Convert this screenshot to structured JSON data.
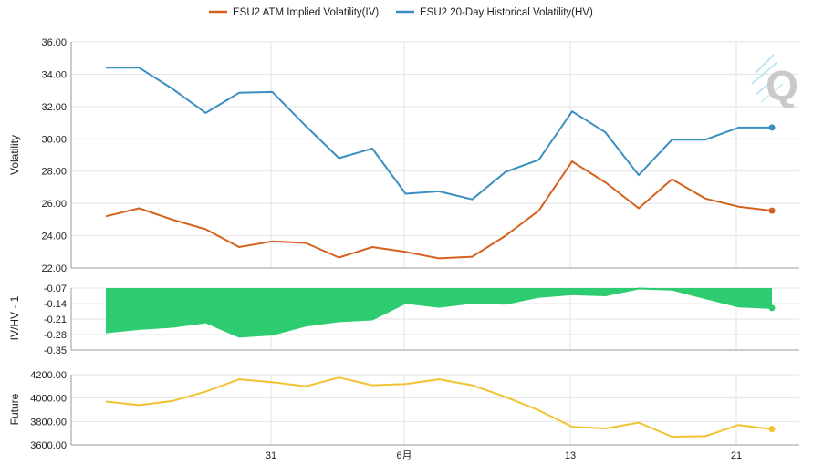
{
  "chart_data": {
    "type": "line",
    "legend": {
      "placement": "top-center",
      "items": [
        {
          "label": "ESU2 ATM Implied Volatility(IV)",
          "color": "#d4621f"
        },
        {
          "label": "ESU2 20-Day Historical Volatility(HV)",
          "color": "#3a8fc1"
        }
      ]
    },
    "x_ticks": [
      "31",
      "6月",
      "13",
      "21"
    ],
    "logo": "Q",
    "panels": [
      {
        "name": "volatility",
        "ylabel": "Volatility",
        "ylim": [
          22,
          36
        ],
        "yticks": [
          "22.00",
          "24.00",
          "26.00",
          "28.00",
          "30.00",
          "32.00",
          "34.00",
          "36.00"
        ],
        "series": [
          {
            "name": "ESU2 ATM Implied Volatility(IV)",
            "color": "#d4621f",
            "values": [
              25.2,
              25.7,
              25.0,
              24.4,
              23.3,
              23.65,
              23.55,
              22.65,
              23.3,
              23.0,
              22.6,
              22.7,
              24.0,
              25.55,
              28.6,
              27.3,
              25.7,
              27.5,
              26.3,
              25.8,
              25.55
            ]
          },
          {
            "name": "ESU2 20-Day Historical Volatility(HV)",
            "color": "#3a8fc1",
            "values": [
              34.4,
              34.4,
              33.1,
              31.6,
              32.85,
              32.9,
              30.8,
              28.8,
              29.4,
              26.6,
              26.75,
              26.25,
              27.95,
              28.7,
              31.7,
              30.4,
              27.75,
              29.95,
              29.95,
              30.7,
              30.7
            ]
          }
        ]
      },
      {
        "name": "ratio",
        "ylabel": "IV/HV - 1",
        "ylim": [
          -0.35,
          -0.07
        ],
        "yticks": [
          "-0.07",
          "-0.14",
          "-0.21",
          "-0.28",
          "-0.35"
        ],
        "series": [
          {
            "name": "IV/HV - 1",
            "color": "#2ecc71",
            "values": [
              -0.27,
              -0.255,
              -0.245,
              -0.225,
              -0.29,
              -0.28,
              -0.24,
              -0.22,
              -0.212,
              -0.137,
              -0.155,
              -0.137,
              -0.141,
              -0.11,
              -0.098,
              -0.103,
              -0.072,
              -0.077,
              -0.116,
              -0.153,
              -0.16
            ]
          }
        ]
      },
      {
        "name": "future",
        "ylabel": "Future",
        "ylim": [
          3600,
          4200
        ],
        "yticks": [
          "3600.00",
          "3800.00",
          "4000.00",
          "4200.00"
        ],
        "series": [
          {
            "name": "Future",
            "color": "#f1c232",
            "values": [
              3970,
              3940,
              3975,
              4055,
              4160,
              4135,
              4100,
              4175,
              4110,
              4120,
              4160,
              4110,
              4010,
              3895,
              3755,
              3740,
              3790,
              3670,
              3675,
              3770,
              3735
            ]
          }
        ]
      }
    ]
  }
}
